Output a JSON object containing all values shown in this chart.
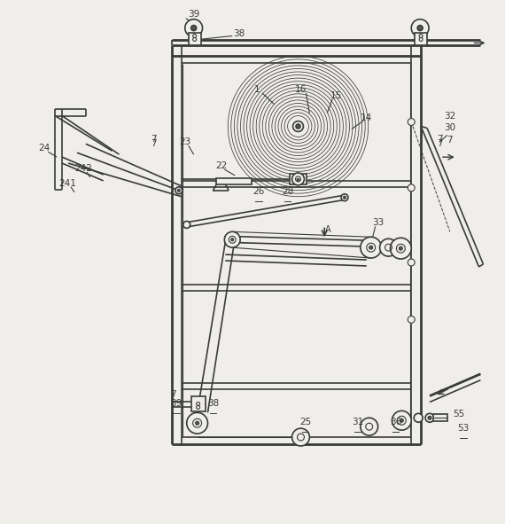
{
  "bg_color": "#f0eeea",
  "line_color": "#3a3a3a",
  "label_color": "#3a3a3a",
  "fig_width": 5.7,
  "fig_height": 5.91
}
